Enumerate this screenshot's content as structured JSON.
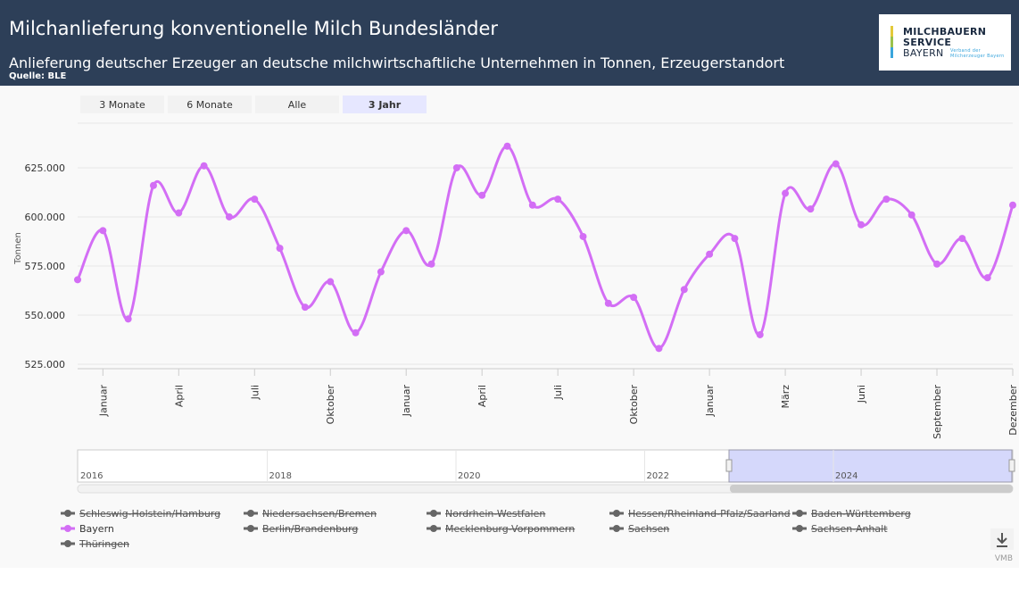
{
  "header": {
    "title": "Milchanlieferung konventionelle Milch Bundesländer",
    "subtitle": "Anlieferung deutscher Erzeuger an deutsche milchwirtschaftliche Unternehmen in Tonnen, Erzeugerstandort",
    "source": "Quelle: BLE",
    "logo": [
      "MILCHBAUERN",
      "SERVICE",
      "BAYERN",
      "Verband der Milcherzeuger Bayern"
    ]
  },
  "range_buttons": [
    {
      "label": "3 Monate",
      "selected": false
    },
    {
      "label": "6 Monate",
      "selected": false
    },
    {
      "label": "Alle",
      "selected": false
    },
    {
      "label": "3 Jahr",
      "selected": true
    }
  ],
  "navigator": {
    "labels": [
      "2016",
      "2018",
      "2020",
      "2022",
      "2024"
    ]
  },
  "legend_items": [
    {
      "name": "Schleswig-Holstein/Hamburg",
      "visible": false
    },
    {
      "name": "Niedersachsen/Bremen",
      "visible": false
    },
    {
      "name": "Nordrhein-Westfalen",
      "visible": false
    },
    {
      "name": "Hessen/Rheinland-Pfalz/Saarland",
      "visible": false
    },
    {
      "name": "Baden-Württemberg",
      "visible": false
    },
    {
      "name": "Bayern",
      "visible": true
    },
    {
      "name": "Berlin/Brandenburg",
      "visible": false
    },
    {
      "name": "Mecklenburg-Vorpommern",
      "visible": false
    },
    {
      "name": "Sachsen",
      "visible": false
    },
    {
      "name": "Sachsen-Anhalt",
      "visible": false
    },
    {
      "name": "Thüringen",
      "visible": false
    }
  ],
  "credit": "VMB",
  "chart_data": {
    "type": "line",
    "ylabel": "Tonnen",
    "categories": [
      null,
      "Januar",
      null,
      null,
      "April",
      null,
      null,
      "Juli",
      null,
      null,
      "Oktober",
      null,
      null,
      "Januar",
      null,
      null,
      "April",
      null,
      null,
      "Juli",
      null,
      null,
      "Oktober",
      null,
      null,
      "Januar",
      null,
      null,
      "März",
      null,
      null,
      "Juni",
      null,
      null,
      "September",
      null,
      null,
      "Dezember"
    ],
    "series": [
      {
        "name": "Bayern",
        "color": "#d36ef5",
        "values": [
          568000,
          593000,
          548000,
          616000,
          602000,
          626000,
          600000,
          609000,
          584000,
          554000,
          567000,
          541000,
          572000,
          593000,
          576000,
          625000,
          611000,
          636000,
          606000,
          609000,
          590000,
          556000,
          559000,
          533000,
          563000,
          581000,
          589000,
          540000,
          612000,
          604000,
          627000,
          596000,
          609000,
          601000,
          576000,
          589000,
          569000,
          606000
        ]
      }
    ],
    "ylim": [
      522700,
      647700
    ],
    "yticks": [
      {
        "value": 525000,
        "label": "525.000"
      },
      {
        "value": 550000,
        "label": "550.000"
      },
      {
        "value": 575000,
        "label": "575.000"
      },
      {
        "value": 600000,
        "label": "600.000"
      },
      {
        "value": 625000,
        "label": "625.000"
      }
    ],
    "grid": true
  }
}
